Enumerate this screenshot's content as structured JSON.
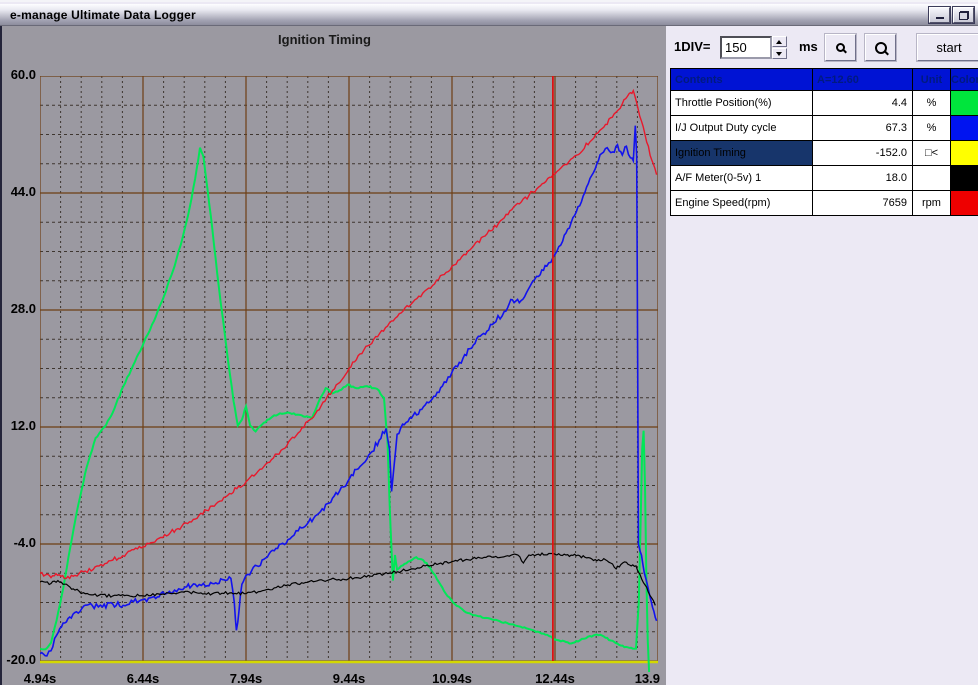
{
  "window": {
    "title": "e-manage Ultimate Data Logger"
  },
  "toolbar": {
    "div_label": "1DIV=",
    "div_value": "150",
    "unit_label": "ms",
    "start_label": "start"
  },
  "table": {
    "headers": [
      "Contents",
      "A=12.60",
      "Unit",
      "Color"
    ],
    "rows": [
      {
        "name": "Throttle Position(%)",
        "value": "4.4",
        "unit": "%",
        "color": "#00e53c",
        "selected": false
      },
      {
        "name": "I/J Output Duty cycle",
        "value": "67.3",
        "unit": "%",
        "color": "#0014f0",
        "selected": false
      },
      {
        "name": "Ignition Timing",
        "value": "-152.0",
        "unit": "□<",
        "color": "#ffff00",
        "selected": true
      },
      {
        "name": "A/F Meter(0-5v) 1",
        "value": "18.0",
        "unit": "",
        "color": "#000000",
        "selected": false
      },
      {
        "name": "Engine Speed(rpm)",
        "value": "7659",
        "unit": "rpm",
        "color": "#ee0000",
        "selected": false
      }
    ]
  },
  "chart_data": {
    "type": "line",
    "title": "Ignition Timing",
    "x_unit": "s",
    "x_range": [
      4.94,
      13.94
    ],
    "y_range": [
      -20,
      60
    ],
    "x_ticks": [
      {
        "t": 4.94,
        "label": "4.94s"
      },
      {
        "t": 6.44,
        "label": "6.44s"
      },
      {
        "t": 7.94,
        "label": "7.94s"
      },
      {
        "t": 9.44,
        "label": "9.44s"
      },
      {
        "t": 10.94,
        "label": "10.94s"
      },
      {
        "t": 12.44,
        "label": "12.44s"
      },
      {
        "t": 13.94,
        "label": "13.9",
        "anchor": "end"
      }
    ],
    "y_ticks": [
      {
        "v": 60,
        "label": "60.0"
      },
      {
        "v": 44,
        "label": "44.0"
      },
      {
        "v": 28,
        "label": "28.0"
      },
      {
        "v": 12,
        "label": "12.0"
      },
      {
        "v": -4,
        "label": "-4.0"
      },
      {
        "v": -20,
        "label": "-20.0"
      }
    ],
    "grid": {
      "x_minor": 0.3,
      "x_major": 1.5,
      "y_minor": 4,
      "y_major": 16,
      "major_color": "#6e3f14",
      "minor_color": "#3e3630",
      "bottom_axis_color": "#d4d800",
      "background": "#9b99a1"
    },
    "cursor": {
      "t": 12.41,
      "color": "#dd1111"
    },
    "series": [
      {
        "name": "Throttle Position(%)",
        "color": "#00e757",
        "width": 2.0,
        "noise": 0.12,
        "points": [
          [
            4.94,
            -18.3
          ],
          [
            5.02,
            -18.4
          ],
          [
            5.1,
            -17.5
          ],
          [
            5.18,
            -14.5
          ],
          [
            5.28,
            -10.0
          ],
          [
            5.38,
            -4.5
          ],
          [
            5.5,
            1.5
          ],
          [
            5.62,
            6.5
          ],
          [
            5.75,
            10.5
          ],
          [
            5.88,
            12.0
          ],
          [
            6.0,
            14.0
          ],
          [
            6.15,
            17.5
          ],
          [
            6.3,
            20.5
          ],
          [
            6.45,
            23.5
          ],
          [
            6.6,
            26.5
          ],
          [
            6.75,
            30.0
          ],
          [
            6.9,
            34.0
          ],
          [
            7.02,
            38.0
          ],
          [
            7.12,
            42.0
          ],
          [
            7.2,
            46.0
          ],
          [
            7.27,
            50.2
          ],
          [
            7.32,
            49.0
          ],
          [
            7.38,
            44.5
          ],
          [
            7.45,
            39.0
          ],
          [
            7.52,
            33.0
          ],
          [
            7.6,
            27.0
          ],
          [
            7.68,
            21.0
          ],
          [
            7.76,
            15.5
          ],
          [
            7.82,
            12.2
          ],
          [
            7.88,
            13.0
          ],
          [
            7.94,
            14.8
          ],
          [
            8.0,
            12.2
          ],
          [
            8.08,
            11.4
          ],
          [
            8.2,
            12.6
          ],
          [
            8.35,
            13.6
          ],
          [
            8.55,
            14.0
          ],
          [
            8.75,
            13.6
          ],
          [
            8.9,
            13.2
          ],
          [
            9.0,
            15.5
          ],
          [
            9.1,
            17.3
          ],
          [
            9.2,
            16.6
          ],
          [
            9.3,
            17.0
          ],
          [
            9.42,
            17.8
          ],
          [
            9.55,
            17.3
          ],
          [
            9.7,
            17.6
          ],
          [
            9.85,
            17.2
          ],
          [
            9.95,
            16.0
          ],
          [
            10.0,
            10.0
          ],
          [
            10.03,
            2.0
          ],
          [
            10.06,
            -5.0
          ],
          [
            10.08,
            -9.0
          ],
          [
            10.11,
            -5.5
          ],
          [
            10.14,
            -7.5
          ],
          [
            10.2,
            -7.0
          ],
          [
            10.3,
            -6.4
          ],
          [
            10.42,
            -5.8
          ],
          [
            10.52,
            -6.2
          ],
          [
            10.62,
            -7.2
          ],
          [
            10.72,
            -8.8
          ],
          [
            10.85,
            -10.8
          ],
          [
            10.98,
            -12.2
          ],
          [
            11.12,
            -13.2
          ],
          [
            11.3,
            -13.8
          ],
          [
            11.55,
            -14.4
          ],
          [
            11.8,
            -15.0
          ],
          [
            12.05,
            -15.6
          ],
          [
            12.3,
            -16.4
          ],
          [
            12.5,
            -17.2
          ],
          [
            12.65,
            -17.6
          ],
          [
            12.8,
            -17.2
          ],
          [
            12.95,
            -16.6
          ],
          [
            13.1,
            -16.4
          ],
          [
            13.25,
            -17.2
          ],
          [
            13.4,
            -17.9
          ],
          [
            13.55,
            -18.2
          ],
          [
            13.62,
            -18.3
          ],
          [
            13.66,
            -12.0
          ],
          [
            13.69,
            0.0
          ],
          [
            13.71,
            9.0
          ],
          [
            13.73,
            11.5
          ],
          [
            13.75,
            4.0
          ],
          [
            13.77,
            -8.0
          ],
          [
            13.79,
            -17.0
          ],
          [
            13.81,
            -21.5
          ]
        ]
      },
      {
        "name": "Engine Speed(rpm)",
        "color": "#e8192c",
        "width": 1.4,
        "noise": 0.3,
        "points": [
          [
            4.94,
            -8.0
          ],
          [
            5.1,
            -8.6
          ],
          [
            5.22,
            -8.2
          ],
          [
            5.32,
            -8.7
          ],
          [
            5.45,
            -8.3
          ],
          [
            5.6,
            -7.7
          ],
          [
            5.8,
            -7.0
          ],
          [
            6.0,
            -6.2
          ],
          [
            6.2,
            -5.3
          ],
          [
            6.44,
            -4.4
          ],
          [
            6.7,
            -3.1
          ],
          [
            6.95,
            -1.9
          ],
          [
            7.2,
            -0.6
          ],
          [
            7.45,
            1.2
          ],
          [
            7.7,
            2.9
          ],
          [
            7.94,
            4.5
          ],
          [
            8.2,
            6.6
          ],
          [
            8.45,
            8.8
          ],
          [
            8.7,
            11.2
          ],
          [
            8.95,
            13.8
          ],
          [
            9.2,
            17.0
          ],
          [
            9.44,
            20.0
          ],
          [
            9.6,
            22.0
          ],
          [
            9.8,
            24.0
          ],
          [
            10.0,
            25.8
          ],
          [
            10.2,
            27.6
          ],
          [
            10.4,
            29.4
          ],
          [
            10.6,
            31.0
          ],
          [
            10.8,
            32.8
          ],
          [
            10.94,
            34.0
          ],
          [
            11.2,
            36.2
          ],
          [
            11.45,
            38.4
          ],
          [
            11.7,
            40.6
          ],
          [
            11.95,
            42.8
          ],
          [
            12.2,
            44.8
          ],
          [
            12.44,
            46.6
          ],
          [
            12.7,
            48.8
          ],
          [
            12.95,
            51.0
          ],
          [
            13.15,
            53.0
          ],
          [
            13.3,
            54.8
          ],
          [
            13.42,
            56.2
          ],
          [
            13.52,
            57.6
          ],
          [
            13.58,
            58.0
          ],
          [
            13.65,
            55.5
          ],
          [
            13.75,
            52.0
          ],
          [
            13.85,
            48.5
          ],
          [
            13.92,
            46.5
          ]
        ]
      },
      {
        "name": "I/J Output Duty cycle",
        "color": "#1212ee",
        "width": 1.6,
        "noise": 0.4,
        "points": [
          [
            4.94,
            -19.0
          ],
          [
            5.04,
            -19.3
          ],
          [
            5.1,
            -18.6
          ],
          [
            5.18,
            -16.5
          ],
          [
            5.3,
            -14.8
          ],
          [
            5.42,
            -13.6
          ],
          [
            5.55,
            -12.8
          ],
          [
            5.7,
            -12.4
          ],
          [
            5.85,
            -12.6
          ],
          [
            6.0,
            -12.2
          ],
          [
            6.15,
            -12.4
          ],
          [
            6.3,
            -11.9
          ],
          [
            6.44,
            -11.6
          ],
          [
            6.6,
            -11.2
          ],
          [
            6.75,
            -10.8
          ],
          [
            6.9,
            -10.3
          ],
          [
            7.05,
            -9.9
          ],
          [
            7.2,
            -9.5
          ],
          [
            7.35,
            -9.8
          ],
          [
            7.5,
            -9.3
          ],
          [
            7.62,
            -8.9
          ],
          [
            7.72,
            -8.7
          ],
          [
            7.77,
            -12.0
          ],
          [
            7.8,
            -15.8
          ],
          [
            7.84,
            -13.0
          ],
          [
            7.88,
            -9.5
          ],
          [
            7.94,
            -8.3
          ],
          [
            8.1,
            -7.0
          ],
          [
            8.25,
            -5.8
          ],
          [
            8.4,
            -4.6
          ],
          [
            8.55,
            -3.4
          ],
          [
            8.7,
            -2.2
          ],
          [
            8.85,
            -1.0
          ],
          [
            9.0,
            0.2
          ],
          [
            9.15,
            1.6
          ],
          [
            9.3,
            3.2
          ],
          [
            9.45,
            5.0
          ],
          [
            9.6,
            6.6
          ],
          [
            9.75,
            8.4
          ],
          [
            9.88,
            10.2
          ],
          [
            9.98,
            11.8
          ],
          [
            10.03,
            9.0
          ],
          [
            10.06,
            3.2
          ],
          [
            10.1,
            7.0
          ],
          [
            10.14,
            11.0
          ],
          [
            10.22,
            12.4
          ],
          [
            10.35,
            13.2
          ],
          [
            10.5,
            14.4
          ],
          [
            10.65,
            15.8
          ],
          [
            10.8,
            17.6
          ],
          [
            10.94,
            19.5
          ],
          [
            11.1,
            21.4
          ],
          [
            11.25,
            23.2
          ],
          [
            11.4,
            24.8
          ],
          [
            11.55,
            26.2
          ],
          [
            11.7,
            27.8
          ],
          [
            11.82,
            29.4
          ],
          [
            11.92,
            29.0
          ],
          [
            12.05,
            30.8
          ],
          [
            12.2,
            32.6
          ],
          [
            12.32,
            34.0
          ],
          [
            12.44,
            35.6
          ],
          [
            12.55,
            37.4
          ],
          [
            12.65,
            39.2
          ],
          [
            12.75,
            41.4
          ],
          [
            12.85,
            43.6
          ],
          [
            12.95,
            46.0
          ],
          [
            13.05,
            48.0
          ],
          [
            13.12,
            49.4
          ],
          [
            13.2,
            50.2
          ],
          [
            13.28,
            49.6
          ],
          [
            13.35,
            50.6
          ],
          [
            13.42,
            49.2
          ],
          [
            13.48,
            50.4
          ],
          [
            13.54,
            48.8
          ],
          [
            13.58,
            48.4
          ],
          [
            13.61,
            53.2
          ],
          [
            13.63,
            49.0
          ],
          [
            13.645,
            20.0
          ],
          [
            13.655,
            -4.0
          ],
          [
            13.68,
            -5.0
          ],
          [
            13.72,
            -6.8
          ],
          [
            13.76,
            -8.6
          ],
          [
            13.8,
            -10.2
          ],
          [
            13.84,
            -11.8
          ],
          [
            13.88,
            -13.2
          ],
          [
            13.92,
            -14.5
          ]
        ]
      },
      {
        "name": "A/F Meter(0-5v) 1",
        "color": "#000000",
        "width": 1.2,
        "noise": 0.2,
        "points": [
          [
            4.94,
            -9.2
          ],
          [
            5.1,
            -9.4
          ],
          [
            5.2,
            -9.0
          ],
          [
            5.3,
            -9.5
          ],
          [
            5.45,
            -10.3
          ],
          [
            5.6,
            -10.8
          ],
          [
            5.8,
            -11.0
          ],
          [
            6.0,
            -11.1
          ],
          [
            6.2,
            -11.0
          ],
          [
            6.44,
            -11.1
          ],
          [
            6.7,
            -10.9
          ],
          [
            6.95,
            -10.7
          ],
          [
            7.2,
            -10.6
          ],
          [
            7.45,
            -10.8
          ],
          [
            7.7,
            -10.7
          ],
          [
            7.94,
            -10.8
          ],
          [
            8.15,
            -10.5
          ],
          [
            8.35,
            -10.0
          ],
          [
            8.55,
            -9.6
          ],
          [
            8.75,
            -9.3
          ],
          [
            8.95,
            -9.1
          ],
          [
            9.15,
            -8.9
          ],
          [
            9.35,
            -8.8
          ],
          [
            9.55,
            -8.6
          ],
          [
            9.75,
            -8.4
          ],
          [
            9.95,
            -8.1
          ],
          [
            10.15,
            -7.8
          ],
          [
            10.35,
            -7.4
          ],
          [
            10.55,
            -7.0
          ],
          [
            10.75,
            -6.7
          ],
          [
            10.94,
            -6.4
          ],
          [
            11.15,
            -6.1
          ],
          [
            11.35,
            -5.9
          ],
          [
            11.55,
            -5.8
          ],
          [
            11.75,
            -5.6
          ],
          [
            11.9,
            -5.5
          ],
          [
            11.98,
            -6.6
          ],
          [
            12.06,
            -5.5
          ],
          [
            12.2,
            -5.4
          ],
          [
            12.35,
            -5.3
          ],
          [
            12.44,
            -5.4
          ],
          [
            12.6,
            -5.5
          ],
          [
            12.75,
            -5.6
          ],
          [
            12.9,
            -5.9
          ],
          [
            13.05,
            -6.3
          ],
          [
            13.15,
            -6.0
          ],
          [
            13.25,
            -6.6
          ],
          [
            13.33,
            -7.4
          ],
          [
            13.4,
            -6.8
          ],
          [
            13.48,
            -6.5
          ],
          [
            13.55,
            -7.0
          ],
          [
            13.62,
            -7.0
          ],
          [
            13.68,
            -8.2
          ],
          [
            13.75,
            -9.6
          ],
          [
            13.82,
            -11.0
          ],
          [
            13.9,
            -12.4
          ]
        ]
      }
    ]
  }
}
